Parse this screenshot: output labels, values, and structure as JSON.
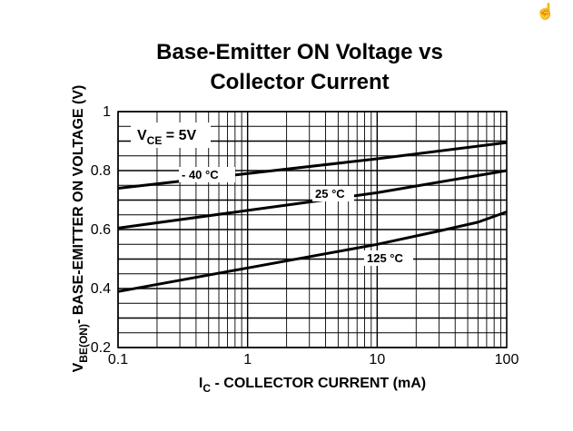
{
  "icons": {
    "cursor": "hand-pointer-icon"
  },
  "chart_data": {
    "type": "line",
    "title_lines": [
      "Base-Emitter ON Voltage vs",
      "Collector Current"
    ],
    "xlabel": {
      "main": "I",
      "sub": "C",
      "rest": " - COLLECTOR CURRENT  (mA)"
    },
    "ylabel": {
      "main": "V",
      "sub": "BE(ON)",
      "rest": "- BASE-EMITTER ON VOLTAGE (V)"
    },
    "x_scale": "log",
    "xlim": [
      0.1,
      100
    ],
    "ylim": [
      0.2,
      1.0
    ],
    "x_ticks": [
      0.1,
      1,
      10,
      100
    ],
    "x_tick_labels": [
      "0.1",
      "1",
      "10",
      "100"
    ],
    "y_ticks": [
      0.2,
      0.4,
      0.6,
      0.8,
      1.0
    ],
    "y_tick_labels": [
      "0.2",
      "0.4",
      "0.6",
      "0.8",
      "1"
    ],
    "grid": true,
    "condition": {
      "main": "V",
      "sub": "CE",
      "rest": " = 5V"
    },
    "series": [
      {
        "name": "- 40 °C",
        "x": [
          0.1,
          1,
          10,
          100
        ],
        "y": [
          0.74,
          0.79,
          0.84,
          0.895
        ]
      },
      {
        "name": "25 °C",
        "x": [
          0.1,
          1,
          10,
          100
        ],
        "y": [
          0.605,
          0.665,
          0.725,
          0.8
        ]
      },
      {
        "name": "125 °C",
        "x": [
          0.1,
          1,
          10,
          30,
          60,
          100
        ],
        "y": [
          0.39,
          0.47,
          0.55,
          0.595,
          0.625,
          0.66
        ]
      }
    ],
    "colors": {
      "line": "#000000",
      "grid": "#000000",
      "background": "#ffffff"
    }
  }
}
